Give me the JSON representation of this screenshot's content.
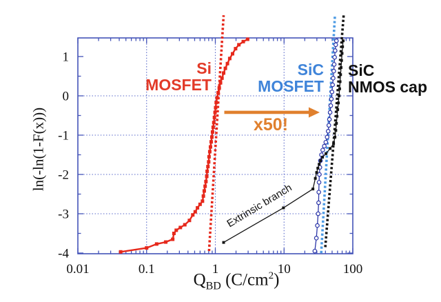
{
  "chart_data": {
    "type": "scatter",
    "description": "Weibull plot of charge-to-breakdown for Si MOSFET, SiC MOSFET and SiC NMOS cap",
    "ylabel": "ln(-ln(1-F(x)))",
    "xlabel": {
      "main": "Q",
      "sub": "BD",
      "unit_pre": " (C/cm",
      "unit_sup": "2",
      "unit_post": ")"
    },
    "x_scale": "log",
    "xlim": [
      0.01,
      100
    ],
    "ylim": [
      -4,
      1.47
    ],
    "x_ticks": [
      {
        "q": 0.01,
        "label": "0.01"
      },
      {
        "q": 0.1,
        "label": "0.1"
      },
      {
        "q": 1,
        "label": "1"
      },
      {
        "q": 10,
        "label": "10"
      },
      {
        "q": 100,
        "label": "100"
      }
    ],
    "y_ticks": [
      {
        "v": 1,
        "label": "1"
      },
      {
        "v": 0,
        "label": "0"
      },
      {
        "v": -1,
        "label": "-1"
      },
      {
        "v": -2,
        "label": "-2"
      },
      {
        "v": -3,
        "label": "-3"
      },
      {
        "v": -4,
        "label": "-4"
      }
    ],
    "x_gridlines": [
      0.1,
      1,
      10
    ],
    "y_gridlines": [
      0,
      -1,
      -2,
      -3
    ],
    "grid": "dotted-blue",
    "legend_position": "none",
    "series": [
      {
        "name": "Si MOSFET Weibull fit",
        "color": "#e6281b",
        "style": "dotted",
        "line_width": 3.6,
        "points": [
          [
            0.81,
            -3.95
          ],
          [
            1.32,
            2.05
          ]
        ]
      },
      {
        "name": "SiC MOSFET Weibull fit",
        "color": "#4d9be4",
        "style": "dotted",
        "line_width": 3.6,
        "points": [
          [
            34.7,
            -4.0
          ],
          [
            55,
            2.05
          ]
        ]
      },
      {
        "name": "SiC NMOS cap Weibull fit",
        "color": "#141414",
        "style": "dotted",
        "line_width": 3.6,
        "points": [
          [
            39.8,
            -3.85
          ],
          [
            74,
            2.1
          ]
        ]
      },
      {
        "name": "Si MOSFET",
        "color": "#e6281b",
        "marker": "square",
        "marker_size": 5,
        "line_width": 2.4,
        "points": [
          [
            0.042,
            -3.97
          ],
          [
            0.1,
            -3.87
          ],
          [
            0.14,
            -3.77
          ],
          [
            0.19,
            -3.72
          ],
          [
            0.24,
            -3.65
          ],
          [
            0.25,
            -3.5
          ],
          [
            0.27,
            -3.42
          ],
          [
            0.31,
            -3.35
          ],
          [
            0.36,
            -3.28
          ],
          [
            0.42,
            -3.17
          ],
          [
            0.47,
            -3.03
          ],
          [
            0.51,
            -2.95
          ],
          [
            0.55,
            -2.85
          ],
          [
            0.6,
            -2.76
          ],
          [
            0.65,
            -2.68
          ],
          [
            0.67,
            -2.55
          ],
          [
            0.69,
            -2.42
          ],
          [
            0.71,
            -2.3
          ],
          [
            0.73,
            -2.18
          ],
          [
            0.75,
            -2.05
          ],
          [
            0.76,
            -1.92
          ],
          [
            0.78,
            -1.8
          ],
          [
            0.8,
            -1.68
          ],
          [
            0.81,
            -1.55
          ],
          [
            0.83,
            -1.42
          ],
          [
            0.85,
            -1.3
          ],
          [
            0.87,
            -1.17
          ],
          [
            0.89,
            -1.05
          ],
          [
            0.91,
            -0.92
          ],
          [
            0.93,
            -0.8
          ],
          [
            0.95,
            -0.68
          ],
          [
            0.97,
            -0.55
          ],
          [
            0.99,
            -0.42
          ],
          [
            1.01,
            -0.3
          ],
          [
            1.03,
            -0.17
          ],
          [
            1.06,
            -0.05
          ],
          [
            1.1,
            0.08
          ],
          [
            1.14,
            0.2
          ],
          [
            1.19,
            0.33
          ],
          [
            1.25,
            0.45
          ],
          [
            1.32,
            0.58
          ],
          [
            1.4,
            0.7
          ],
          [
            1.5,
            0.82
          ],
          [
            1.62,
            0.95
          ],
          [
            1.78,
            1.07
          ],
          [
            1.97,
            1.2
          ],
          [
            2.2,
            1.3
          ],
          [
            2.55,
            1.38
          ],
          [
            2.95,
            1.44
          ]
        ]
      },
      {
        "name": "SiC MOSFET",
        "color": "#2b35a8",
        "marker": "circle-open",
        "marker_size": 2.7,
        "line_width": 1.3,
        "points": [
          [
            28,
            -3.95
          ],
          [
            29.5,
            -3.62
          ],
          [
            30.5,
            -3.3
          ],
          [
            31.3,
            -3.0
          ],
          [
            31.8,
            -2.72
          ],
          [
            32.0,
            -2.45
          ],
          [
            32.3,
            -2.2
          ],
          [
            32.6,
            -2.0
          ],
          [
            33.2,
            -1.82
          ],
          [
            33.8,
            -1.65
          ],
          [
            35.0,
            -1.5
          ],
          [
            36.5,
            -1.38
          ],
          [
            38.5,
            -1.28
          ],
          [
            40.5,
            -1.18
          ],
          [
            42.3,
            -1.05
          ],
          [
            43.8,
            -0.9
          ],
          [
            44.8,
            -0.75
          ],
          [
            45.7,
            -0.6
          ],
          [
            46.8,
            -0.42
          ],
          [
            47.8,
            -0.25
          ],
          [
            48.8,
            -0.08
          ],
          [
            49.8,
            0.1
          ],
          [
            50.8,
            0.28
          ],
          [
            51.8,
            0.45
          ],
          [
            52.8,
            0.63
          ],
          [
            53.6,
            0.8
          ],
          [
            54.4,
            0.98
          ],
          [
            55.3,
            1.15
          ],
          [
            56.5,
            1.3
          ],
          [
            57.8,
            1.4
          ]
        ]
      },
      {
        "name": "SiC NMOS cap",
        "color": "#141414",
        "marker": "square",
        "marker_size": 4,
        "line_width": 1.3,
        "points": [
          [
            1.32,
            -3.73
          ],
          [
            9.8,
            -2.85
          ],
          [
            26.3,
            -2.37
          ],
          [
            28.5,
            -2.1
          ],
          [
            29.8,
            -1.95
          ],
          [
            31.0,
            -1.84
          ],
          [
            32.4,
            -1.74
          ],
          [
            33.9,
            -1.65
          ],
          [
            36.3,
            -1.56
          ],
          [
            40.7,
            -1.47
          ],
          [
            46.8,
            -1.34
          ],
          [
            52.5,
            -1.22
          ],
          [
            55.0,
            -1.05
          ],
          [
            56.6,
            -0.88
          ],
          [
            57.8,
            -0.7
          ],
          [
            59.0,
            -0.52
          ],
          [
            60.3,
            -0.35
          ],
          [
            61.7,
            -0.18
          ],
          [
            63.1,
            0.0
          ],
          [
            64.3,
            0.18
          ],
          [
            65.3,
            0.36
          ],
          [
            66.4,
            0.54
          ],
          [
            67.5,
            0.72
          ],
          [
            68.6,
            0.9
          ],
          [
            69.8,
            1.08
          ],
          [
            71.0,
            1.25
          ],
          [
            72.4,
            1.4
          ]
        ]
      }
    ],
    "annotations": {
      "scale_arrow": {
        "label": "x50!",
        "from_q": 1.35,
        "to_q": 33,
        "at_y": -0.42
      }
    }
  },
  "labels": {
    "si": {
      "line1": "Si",
      "line2": "MOSFET"
    },
    "sic_blue": {
      "line1": "SiC",
      "line2": "MOSFET"
    },
    "sic_black": {
      "line1": "SiC",
      "line2": "NMOS cap"
    },
    "arrow_label": "x50!",
    "extrinsic_label": "Extrinsic branch"
  },
  "axes": {
    "y_title": "ln(-ln(1-F(x)))"
  },
  "colors": {
    "axis_blue": "#4353b8",
    "grid_blue": "#5565c8",
    "si_red": "#e6281b",
    "si_label_red": "#e23a28",
    "sic_curve_blue": "#2b35a8",
    "sic_fit_lightblue": "#4d9be4",
    "sic_label_blue": "#3f84d9",
    "nmos_black": "#141414",
    "arrow_orange": "#e0802e"
  }
}
